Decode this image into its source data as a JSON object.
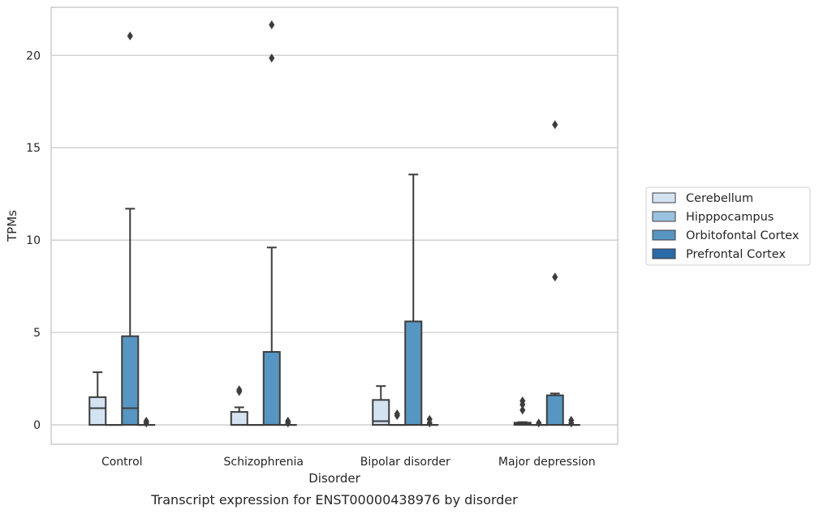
{
  "chart_data": {
    "type": "box",
    "xlabel": "Disorder",
    "ylabel": "TPMs",
    "caption": "Transcript expression for ENST00000438976 by disorder",
    "categories": [
      "Control",
      "Schizophrenia",
      "Bipolar disorder",
      "Major depression"
    ],
    "ylim": [
      -1.05,
      22.6
    ],
    "yticks": [
      0,
      5,
      10,
      15,
      20
    ],
    "grid": true,
    "legend_position": "right-center",
    "series": [
      {
        "name": "Cerebellum",
        "color": "#d4e3f1",
        "boxes": [
          {
            "q1": 0,
            "median": 0.9,
            "q3": 1.5,
            "whisker_low": 0,
            "whisker_high": 2.85,
            "outliers": []
          },
          {
            "q1": 0,
            "median": 0.0,
            "q3": 0.7,
            "whisker_low": 0,
            "whisker_high": 0.95,
            "outliers": [
              1.8,
              1.9
            ]
          },
          {
            "q1": 0,
            "median": 0.2,
            "q3": 1.35,
            "whisker_low": 0,
            "whisker_high": 2.1,
            "outliers": []
          },
          {
            "q1": 0,
            "median": 0.05,
            "q3": 0.12,
            "whisker_low": 0,
            "whisker_high": 0.15,
            "outliers": [
              0.8,
              1.1,
              1.3
            ]
          }
        ]
      },
      {
        "name": "Hipppocampus",
        "color": "#9ac3df",
        "boxes": [
          {
            "q1": 0,
            "median": 0,
            "q3": 0,
            "whisker_low": 0,
            "whisker_high": 0,
            "outliers": []
          },
          {
            "q1": 0,
            "median": 0,
            "q3": 0,
            "whisker_low": 0,
            "whisker_high": 0,
            "outliers": []
          },
          {
            "q1": 0,
            "median": 0,
            "q3": 0,
            "whisker_low": 0,
            "whisker_high": 0,
            "outliers": [
              0.5,
              0.6
            ]
          },
          {
            "q1": 0,
            "median": 0,
            "q3": 0,
            "whisker_low": 0,
            "whisker_high": 0,
            "outliers": [
              0.1
            ]
          }
        ]
      },
      {
        "name": "Orbitofontal Cortex",
        "color": "#5796c2",
        "boxes": [
          {
            "q1": 0,
            "median": 0.9,
            "q3": 4.8,
            "whisker_low": 0,
            "whisker_high": 11.7,
            "outliers": [
              21.05
            ]
          },
          {
            "q1": 0,
            "median": 0.0,
            "q3": 3.95,
            "whisker_low": 0,
            "whisker_high": 9.6,
            "outliers": [
              19.85,
              21.65
            ]
          },
          {
            "q1": 0,
            "median": 0.0,
            "q3": 5.6,
            "whisker_low": 0,
            "whisker_high": 13.55,
            "outliers": []
          },
          {
            "q1": 0,
            "median": 0.0,
            "q3": 1.6,
            "whisker_low": 0,
            "whisker_high": 1.7,
            "outliers": [
              8.0,
              16.25
            ]
          }
        ]
      },
      {
        "name": "Prefrontal Cortex",
        "color": "#2a6aa6",
        "boxes": [
          {
            "q1": 0,
            "median": 0,
            "q3": 0,
            "whisker_low": 0,
            "whisker_high": 0,
            "outliers": [
              0.1,
              0.2
            ]
          },
          {
            "q1": 0,
            "median": 0,
            "q3": 0,
            "whisker_low": 0,
            "whisker_high": 0,
            "outliers": [
              0.1,
              0.2
            ]
          },
          {
            "q1": 0,
            "median": 0,
            "q3": 0,
            "whisker_low": 0,
            "whisker_high": 0,
            "outliers": [
              0.1,
              0.3
            ]
          },
          {
            "q1": 0,
            "median": 0,
            "q3": 0,
            "whisker_low": 0,
            "whisker_high": 0,
            "outliers": [
              0.1,
              0.25
            ]
          }
        ]
      }
    ]
  }
}
